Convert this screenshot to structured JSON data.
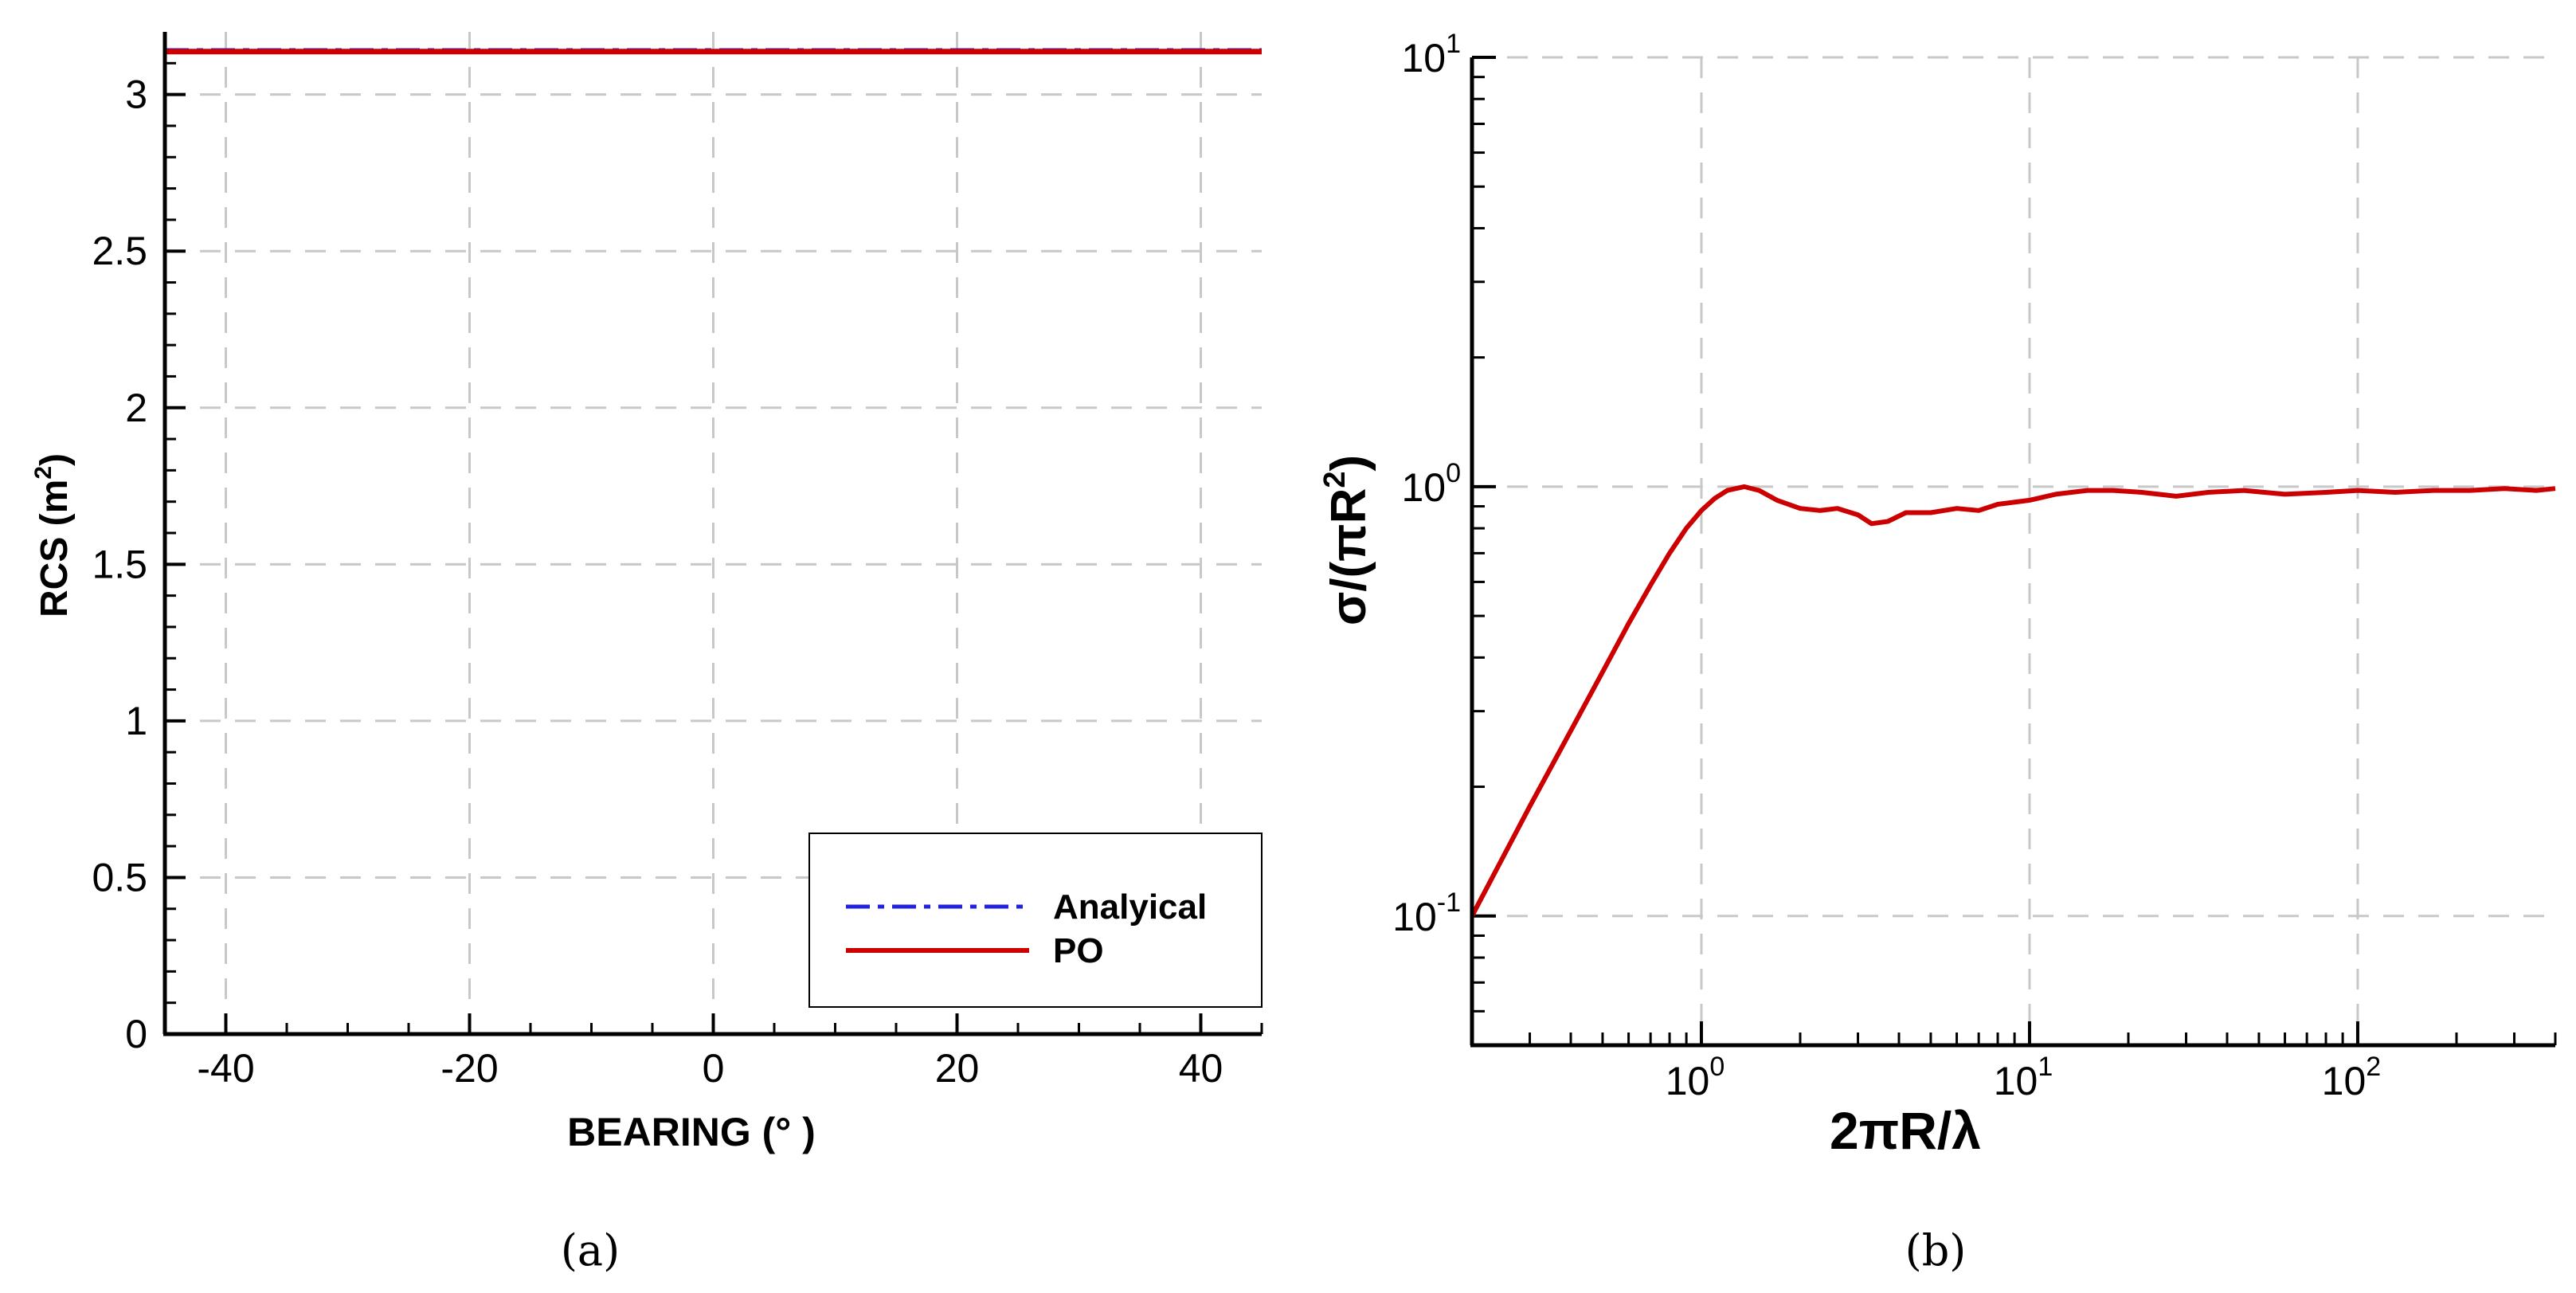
{
  "chart_data": [
    {
      "type": "line",
      "panel_label": "(a)",
      "xlabel": "BEARING (° )",
      "ylabel": "RCS (m",
      "ylabel_sup": "2",
      "ylabel_close": ")",
      "xlim": [
        -45,
        45
      ],
      "ylim": [
        0,
        3.2
      ],
      "xticks": [
        -40,
        -20,
        0,
        20,
        40
      ],
      "xtick_labels": [
        "-40",
        "-20",
        "0",
        "20",
        "40"
      ],
      "yticks": [
        0,
        0.5,
        1,
        1.5,
        2,
        2.5,
        3
      ],
      "ytick_labels": [
        "0",
        "0.5",
        "1",
        "1.5",
        "2",
        "2.5",
        "3"
      ],
      "grid": true,
      "legend_position": "bottom-right",
      "series": [
        {
          "name": "Analyical",
          "style": "dash-dot",
          "color": "#2222dd",
          "x": [
            -45,
            45
          ],
          "y": [
            3.1416,
            3.1416
          ]
        },
        {
          "name": "PO",
          "style": "solid",
          "color": "#cc0000",
          "x": [
            -45,
            45
          ],
          "y": [
            3.137,
            3.137
          ]
        }
      ]
    },
    {
      "type": "line",
      "panel_label": "(b)",
      "xscale": "log",
      "yscale": "log",
      "xlabel": "2πR/λ",
      "ylabel": "σ/(πR",
      "ylabel_sup": "2",
      "ylabel_close": ")",
      "xlim": [
        0.2,
        400
      ],
      "ylim": [
        0.05,
        10
      ],
      "xticks": [
        1,
        10,
        100
      ],
      "xtick_bases": [
        "10",
        "10",
        "10"
      ],
      "xtick_exps": [
        "0",
        "1",
        "2"
      ],
      "yticks": [
        0.1,
        1,
        10
      ],
      "ytick_bases": [
        "10",
        "10",
        "10"
      ],
      "ytick_exps": [
        "-1",
        "0",
        "1"
      ],
      "grid": true,
      "series": [
        {
          "name": "PO",
          "style": "solid",
          "color": "#cc0000",
          "x": [
            0.2,
            0.3,
            0.4,
            0.5,
            0.6,
            0.7,
            0.8,
            0.9,
            1.0,
            1.1,
            1.2,
            1.35,
            1.5,
            1.7,
            2.0,
            2.3,
            2.6,
            3.0,
            3.3,
            3.7,
            4.2,
            5.0,
            6.0,
            7.0,
            8.0,
            10,
            12,
            15,
            18,
            22,
            28,
            35,
            45,
            60,
            80,
            100,
            130,
            170,
            220,
            280,
            350,
            400
          ],
          "y": [
            0.1,
            0.18,
            0.27,
            0.37,
            0.48,
            0.59,
            0.7,
            0.8,
            0.88,
            0.94,
            0.98,
            1.0,
            0.98,
            0.93,
            0.89,
            0.88,
            0.89,
            0.86,
            0.82,
            0.83,
            0.87,
            0.87,
            0.89,
            0.88,
            0.91,
            0.93,
            0.96,
            0.98,
            0.98,
            0.97,
            0.95,
            0.97,
            0.98,
            0.96,
            0.97,
            0.98,
            0.97,
            0.98,
            0.98,
            0.99,
            0.98,
            0.99
          ]
        }
      ]
    }
  ]
}
